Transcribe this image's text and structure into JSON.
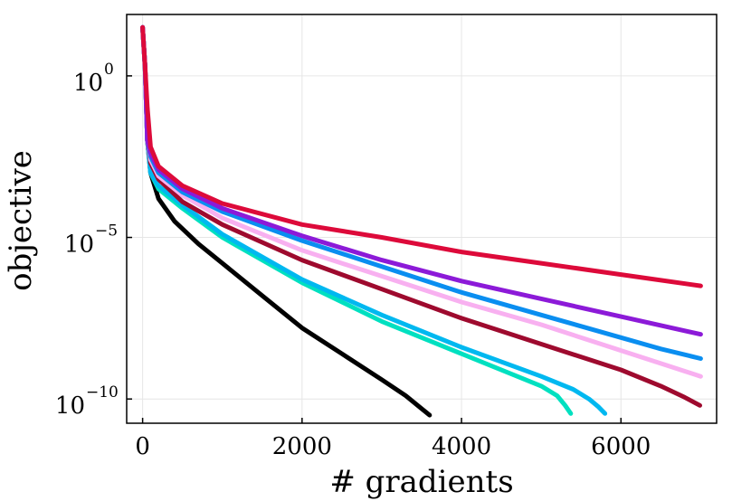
{
  "chart_data": {
    "type": "line",
    "title": "",
    "xlabel": "# gradients",
    "ylabel": "objective",
    "xlim": [
      -200,
      7200
    ],
    "ylim_log10": [
      -10.75,
      1.9
    ],
    "y_scale": "log",
    "grid": true,
    "legend": "none",
    "x_ticks": [
      0,
      2000,
      4000,
      6000
    ],
    "x_tick_labels": [
      "0",
      "2000",
      "4000",
      "6000"
    ],
    "y_ticks_log10": [
      0,
      -5,
      -10
    ],
    "y_tick_labels": [
      {
        "base": "10",
        "exp": "0"
      },
      {
        "base": "10",
        "exp": "−5"
      },
      {
        "base": "10",
        "exp": "−10"
      }
    ],
    "series": [
      {
        "name": "series-black",
        "color": "#000000",
        "points": [
          [
            0,
            1.5
          ],
          [
            30,
            0.3
          ],
          [
            60,
            -2
          ],
          [
            100,
            -3
          ],
          [
            200,
            -3.8
          ],
          [
            400,
            -4.5
          ],
          [
            700,
            -5.2
          ],
          [
            1000,
            -5.8
          ],
          [
            1500,
            -6.8
          ],
          [
            2000,
            -7.8
          ],
          [
            2500,
            -8.6
          ],
          [
            3000,
            -9.4
          ],
          [
            3300,
            -9.9
          ],
          [
            3500,
            -10.3
          ],
          [
            3600,
            -10.5
          ]
        ]
      },
      {
        "name": "series-aqua",
        "color": "#00e0c0",
        "points": [
          [
            0,
            1.5
          ],
          [
            30,
            0.3
          ],
          [
            60,
            -2
          ],
          [
            100,
            -3
          ],
          [
            200,
            -3.5
          ],
          [
            500,
            -4.1
          ],
          [
            1000,
            -5.0
          ],
          [
            2000,
            -6.4
          ],
          [
            3000,
            -7.6
          ],
          [
            4000,
            -8.6
          ],
          [
            4700,
            -9.3
          ],
          [
            5000,
            -9.6
          ],
          [
            5200,
            -9.9
          ],
          [
            5300,
            -10.2
          ],
          [
            5370,
            -10.45
          ]
        ]
      },
      {
        "name": "series-sky-blue",
        "color": "#00b8f0",
        "points": [
          [
            0,
            1.5
          ],
          [
            30,
            0.3
          ],
          [
            60,
            -2
          ],
          [
            100,
            -3
          ],
          [
            200,
            -3.4
          ],
          [
            500,
            -4.0
          ],
          [
            1000,
            -4.9
          ],
          [
            2000,
            -6.3
          ],
          [
            3000,
            -7.4
          ],
          [
            4000,
            -8.4
          ],
          [
            5000,
            -9.3
          ],
          [
            5400,
            -9.7
          ],
          [
            5600,
            -10.0
          ],
          [
            5720,
            -10.25
          ],
          [
            5800,
            -10.45
          ]
        ]
      },
      {
        "name": "series-crimson-dark",
        "color": "#9e0a2e",
        "points": [
          [
            0,
            1.5
          ],
          [
            30,
            0.3
          ],
          [
            60,
            -2
          ],
          [
            100,
            -2.7
          ],
          [
            200,
            -3.2
          ],
          [
            500,
            -3.9
          ],
          [
            1000,
            -4.6
          ],
          [
            2000,
            -5.7
          ],
          [
            3000,
            -6.6
          ],
          [
            4000,
            -7.5
          ],
          [
            5000,
            -8.3
          ],
          [
            6000,
            -9.1
          ],
          [
            6500,
            -9.6
          ],
          [
            6800,
            -9.95
          ],
          [
            6990,
            -10.2
          ]
        ]
      },
      {
        "name": "series-pink",
        "color": "#f8b0f0",
        "points": [
          [
            0,
            1.5
          ],
          [
            30,
            0.3
          ],
          [
            60,
            -2
          ],
          [
            100,
            -2.6
          ],
          [
            200,
            -3.1
          ],
          [
            500,
            -3.7
          ],
          [
            1000,
            -4.4
          ],
          [
            2000,
            -5.4
          ],
          [
            3000,
            -6.2
          ],
          [
            4000,
            -7.0
          ],
          [
            5000,
            -7.7
          ],
          [
            6000,
            -8.5
          ],
          [
            6500,
            -8.9
          ],
          [
            7000,
            -9.3
          ]
        ]
      },
      {
        "name": "series-blue",
        "color": "#0a8ef0",
        "points": [
          [
            0,
            1.5
          ],
          [
            30,
            0.3
          ],
          [
            60,
            -2
          ],
          [
            100,
            -2.5
          ],
          [
            200,
            -3.0
          ],
          [
            500,
            -3.6
          ],
          [
            1000,
            -4.2
          ],
          [
            2000,
            -5.1
          ],
          [
            3000,
            -5.9
          ],
          [
            4000,
            -6.7
          ],
          [
            5000,
            -7.4
          ],
          [
            6000,
            -8.1
          ],
          [
            6500,
            -8.45
          ],
          [
            7000,
            -8.75
          ]
        ]
      },
      {
        "name": "series-purple",
        "color": "#8c1ad8",
        "points": [
          [
            0,
            1.5
          ],
          [
            30,
            0.3
          ],
          [
            60,
            -2
          ],
          [
            100,
            -2.4
          ],
          [
            200,
            -2.9
          ],
          [
            500,
            -3.5
          ],
          [
            1000,
            -4.1
          ],
          [
            2000,
            -4.95
          ],
          [
            3000,
            -5.7
          ],
          [
            4000,
            -6.35
          ],
          [
            5000,
            -6.9
          ],
          [
            6000,
            -7.45
          ],
          [
            7000,
            -8.0
          ]
        ]
      },
      {
        "name": "series-red",
        "color": "#dd0a3a",
        "points": [
          [
            0,
            1.5
          ],
          [
            30,
            0.3
          ],
          [
            60,
            -1
          ],
          [
            100,
            -2.2
          ],
          [
            200,
            -2.8
          ],
          [
            500,
            -3.4
          ],
          [
            1000,
            -3.95
          ],
          [
            2000,
            -4.6
          ],
          [
            3000,
            -5.0
          ],
          [
            4000,
            -5.45
          ],
          [
            5000,
            -5.8
          ],
          [
            6000,
            -6.15
          ],
          [
            7000,
            -6.5
          ]
        ]
      }
    ]
  }
}
